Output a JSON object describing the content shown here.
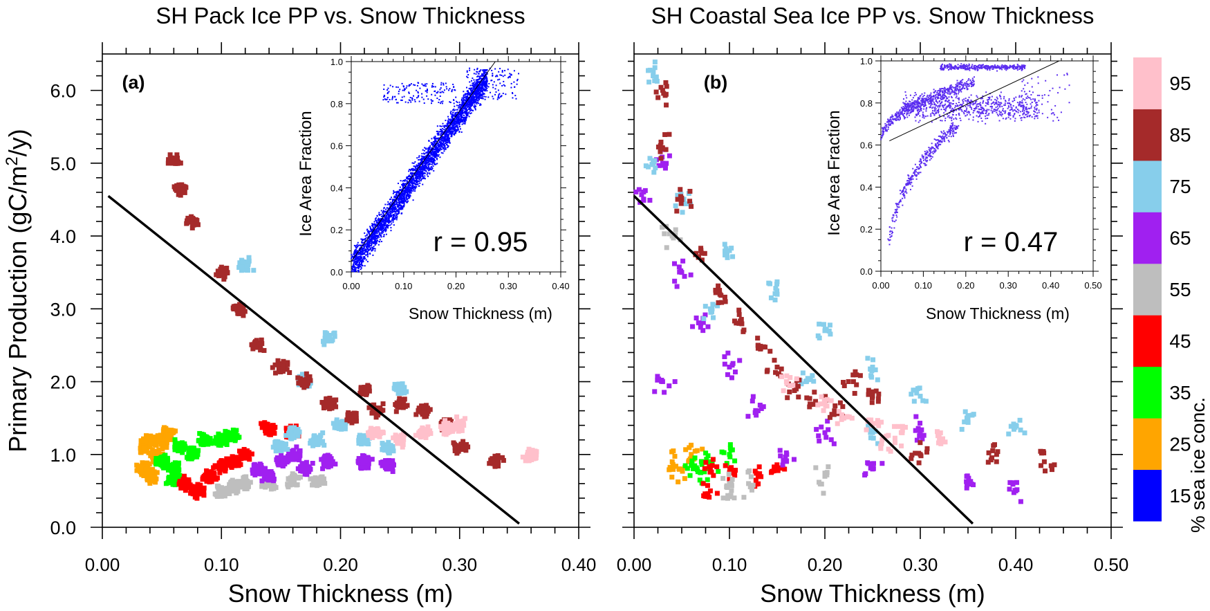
{
  "chart_data": [
    {
      "type": "scatter",
      "panel_label": "(a)",
      "title": "SH Pack Ice PP vs. Snow Thickness",
      "xlabel": "Snow Thickness (m)",
      "ylabel": "Primary Production (gC/m2/y)",
      "ylabel_parts": [
        "Primary Production (gC/m",
        "2",
        "/y)"
      ],
      "xlim": [
        0,
        0.4
      ],
      "ylim": [
        0,
        6.5
      ],
      "xticks": [
        "0.00",
        "0.10",
        "0.20",
        "0.30",
        "0.40"
      ],
      "yticks": [
        "0.0",
        "1.0",
        "2.0",
        "3.0",
        "4.0",
        "5.0",
        "6.0"
      ],
      "fit_line": [
        [
          0.005,
          4.55
        ],
        [
          0.35,
          0.05
        ]
      ],
      "series": [
        {
          "name": "25",
          "color": "#FFA500",
          "points": [
            [
              0.035,
              1.1
            ],
            [
              0.035,
              0.8
            ],
            [
              0.04,
              0.7
            ],
            [
              0.045,
              1.0
            ],
            [
              0.05,
              1.2
            ],
            [
              0.055,
              1.3
            ],
            [
              0.04,
              1.2
            ]
          ]
        },
        {
          "name": "35",
          "color": "#00FF00",
          "points": [
            [
              0.05,
              0.9
            ],
            [
              0.06,
              0.8
            ],
            [
              0.065,
              1.1
            ],
            [
              0.075,
              1.0
            ],
            [
              0.085,
              1.2
            ],
            [
              0.1,
              1.2
            ],
            [
              0.11,
              1.25
            ],
            [
              0.06,
              0.65
            ]
          ]
        },
        {
          "name": "45",
          "color": "#FF0000",
          "points": [
            [
              0.07,
              0.6
            ],
            [
              0.08,
              0.5
            ],
            [
              0.09,
              0.7
            ],
            [
              0.1,
              0.85
            ],
            [
              0.11,
              0.9
            ],
            [
              0.12,
              1.0
            ],
            [
              0.14,
              1.35
            ],
            [
              0.16,
              1.3
            ]
          ]
        },
        {
          "name": "55",
          "color": "#BEBEBE",
          "points": [
            [
              0.1,
              0.5
            ],
            [
              0.11,
              0.55
            ],
            [
              0.12,
              0.6
            ],
            [
              0.14,
              0.6
            ],
            [
              0.16,
              0.65
            ],
            [
              0.18,
              0.65
            ]
          ]
        },
        {
          "name": "65",
          "color": "#A020F0",
          "points": [
            [
              0.13,
              0.8
            ],
            [
              0.14,
              0.7
            ],
            [
              0.15,
              0.9
            ],
            [
              0.16,
              1.0
            ],
            [
              0.17,
              0.8
            ],
            [
              0.19,
              0.9
            ],
            [
              0.22,
              0.9
            ],
            [
              0.24,
              0.85
            ]
          ]
        },
        {
          "name": "75",
          "color": "#87CEEB",
          "points": [
            [
              0.15,
              1.1
            ],
            [
              0.16,
              1.3
            ],
            [
              0.18,
              1.2
            ],
            [
              0.2,
              1.4
            ],
            [
              0.22,
              1.2
            ],
            [
              0.24,
              1.1
            ],
            [
              0.17,
              2.0
            ],
            [
              0.19,
              2.6
            ],
            [
              0.12,
              3.6
            ],
            [
              0.25,
              1.9
            ]
          ]
        },
        {
          "name": "85",
          "color": "#A52A2A",
          "points": [
            [
              0.06,
              5.05
            ],
            [
              0.066,
              4.65
            ],
            [
              0.075,
              4.2
            ],
            [
              0.1,
              3.5
            ],
            [
              0.115,
              3.0
            ],
            [
              0.13,
              2.5
            ],
            [
              0.15,
              2.2
            ],
            [
              0.17,
              2.0
            ],
            [
              0.19,
              1.7
            ],
            [
              0.21,
              1.5
            ],
            [
              0.23,
              1.6
            ],
            [
              0.25,
              1.7
            ],
            [
              0.27,
              1.6
            ],
            [
              0.29,
              1.4
            ],
            [
              0.22,
              1.9
            ],
            [
              0.3,
              1.1
            ],
            [
              0.33,
              0.9
            ]
          ]
        },
        {
          "name": "95",
          "color": "#FFC0CB",
          "points": [
            [
              0.23,
              1.3
            ],
            [
              0.25,
              1.2
            ],
            [
              0.27,
              1.3
            ],
            [
              0.29,
              1.35
            ],
            [
              0.3,
              1.4
            ],
            [
              0.36,
              1.0
            ]
          ]
        }
      ],
      "inset": {
        "type": "scatter",
        "xlabel": "Snow Thickness (m)",
        "ylabel": "Ice Area Fraction",
        "xlim": [
          0,
          0.4
        ],
        "ylim": [
          0,
          1.0
        ],
        "xticks": [
          "0.00",
          "0.10",
          "0.20",
          "0.30",
          "0.40"
        ],
        "yticks": [
          "0.0",
          "0.2",
          "0.4",
          "0.6",
          "0.8",
          "1.0"
        ],
        "color": "#0000FF",
        "fit_line": [
          [
            0.0,
            0.05
          ],
          [
            0.275,
            1.0
          ]
        ],
        "annotation": "r = 0.95"
      }
    },
    {
      "type": "scatter",
      "panel_label": "(b)",
      "title": "SH Coastal Sea Ice PP vs. Snow Thickness",
      "xlabel": "Snow Thickness (m)",
      "xlim": [
        0,
        0.5
      ],
      "ylim": [
        0,
        6.5
      ],
      "xticks": [
        "0.00",
        "0.10",
        "0.20",
        "0.30",
        "0.40",
        "0.50"
      ],
      "fit_line": [
        [
          0.0,
          4.55
        ],
        [
          0.355,
          0.05
        ]
      ],
      "series": [
        {
          "name": "25",
          "color": "#FFA500",
          "points": [
            [
              0.04,
              0.9
            ],
            [
              0.05,
              0.8
            ],
            [
              0.06,
              1.0
            ]
          ]
        },
        {
          "name": "35",
          "color": "#00FF00",
          "points": [
            [
              0.06,
              0.85
            ],
            [
              0.08,
              0.9
            ],
            [
              0.1,
              1.0
            ],
            [
              0.07,
              0.75
            ]
          ]
        },
        {
          "name": "45",
          "color": "#FF0000",
          "points": [
            [
              0.08,
              0.8
            ],
            [
              0.1,
              0.75
            ],
            [
              0.13,
              0.7
            ],
            [
              0.15,
              0.8
            ],
            [
              0.08,
              0.5
            ]
          ]
        },
        {
          "name": "55",
          "color": "#BEBEBE",
          "points": [
            [
              0.1,
              0.6
            ],
            [
              0.1,
              0.42
            ],
            [
              0.12,
              0.6
            ],
            [
              0.2,
              0.7
            ],
            [
              0.04,
              4.0
            ]
          ]
        },
        {
          "name": "65",
          "color": "#A020F0",
          "points": [
            [
              0.01,
              4.5
            ],
            [
              0.03,
              5.0
            ],
            [
              0.05,
              3.5
            ],
            [
              0.07,
              2.8
            ],
            [
              0.1,
              2.2
            ],
            [
              0.13,
              1.6
            ],
            [
              0.16,
              1.0
            ],
            [
              0.2,
              1.3
            ],
            [
              0.25,
              0.8
            ],
            [
              0.3,
              1.3
            ],
            [
              0.03,
              2.0
            ],
            [
              0.35,
              0.6
            ],
            [
              0.4,
              0.5
            ]
          ]
        },
        {
          "name": "75",
          "color": "#87CEEB",
          "points": [
            [
              0.02,
              6.2
            ],
            [
              0.02,
              5.0
            ],
            [
              0.05,
              4.5
            ],
            [
              0.1,
              3.8
            ],
            [
              0.15,
              3.2
            ],
            [
              0.2,
              2.7
            ],
            [
              0.25,
              2.2
            ],
            [
              0.3,
              1.8
            ],
            [
              0.35,
              1.5
            ],
            [
              0.4,
              1.4
            ],
            [
              0.08,
              3.0
            ],
            [
              0.18,
              2.0
            ],
            [
              0.25,
              1.3
            ]
          ]
        },
        {
          "name": "85",
          "color": "#A52A2A",
          "points": [
            [
              0.03,
              6.0
            ],
            [
              0.03,
              5.2
            ],
            [
              0.05,
              4.5
            ],
            [
              0.07,
              3.8
            ],
            [
              0.09,
              3.2
            ],
            [
              0.11,
              2.8
            ],
            [
              0.13,
              2.5
            ],
            [
              0.15,
              2.2
            ],
            [
              0.17,
              1.9
            ],
            [
              0.19,
              1.7
            ],
            [
              0.21,
              1.6
            ],
            [
              0.23,
              2.0
            ],
            [
              0.25,
              1.8
            ],
            [
              0.3,
              1.0
            ],
            [
              0.38,
              1.0
            ],
            [
              0.43,
              0.9
            ]
          ]
        },
        {
          "name": "95",
          "color": "#FFC0CB",
          "points": [
            [
              0.16,
              2.0
            ],
            [
              0.2,
              1.7
            ],
            [
              0.22,
              1.5
            ],
            [
              0.25,
              1.4
            ],
            [
              0.26,
              1.2
            ],
            [
              0.28,
              1.3
            ],
            [
              0.32,
              1.2
            ]
          ]
        }
      ],
      "inset": {
        "type": "scatter",
        "xlabel": "Snow Thickness (m)",
        "ylabel": "Ice Area Fraction",
        "xlim": [
          0,
          0.5
        ],
        "ylim": [
          0,
          1.0
        ],
        "xticks": [
          "0.00",
          "0.10",
          "0.20",
          "0.30",
          "0.40",
          "0.50"
        ],
        "yticks": [
          "0.0",
          "0.2",
          "0.4",
          "0.6",
          "0.8",
          "1.0"
        ],
        "color": "#5B2DF0",
        "fit_line": [
          [
            0.02,
            0.62
          ],
          [
            0.42,
            1.0
          ]
        ],
        "annotation": "r = 0.47"
      }
    }
  ],
  "colorbar": {
    "label": "% sea ice conc.",
    "levels": [
      {
        "label": "15",
        "color": "#0000FF"
      },
      {
        "label": "25",
        "color": "#FFA500"
      },
      {
        "label": "35",
        "color": "#00FF00"
      },
      {
        "label": "45",
        "color": "#FF0000"
      },
      {
        "label": "55",
        "color": "#BEBEBE"
      },
      {
        "label": "65",
        "color": "#A020F0"
      },
      {
        "label": "75",
        "color": "#87CEEB"
      },
      {
        "label": "85",
        "color": "#A52A2A"
      },
      {
        "label": "95",
        "color": "#FFC0CB"
      }
    ]
  }
}
